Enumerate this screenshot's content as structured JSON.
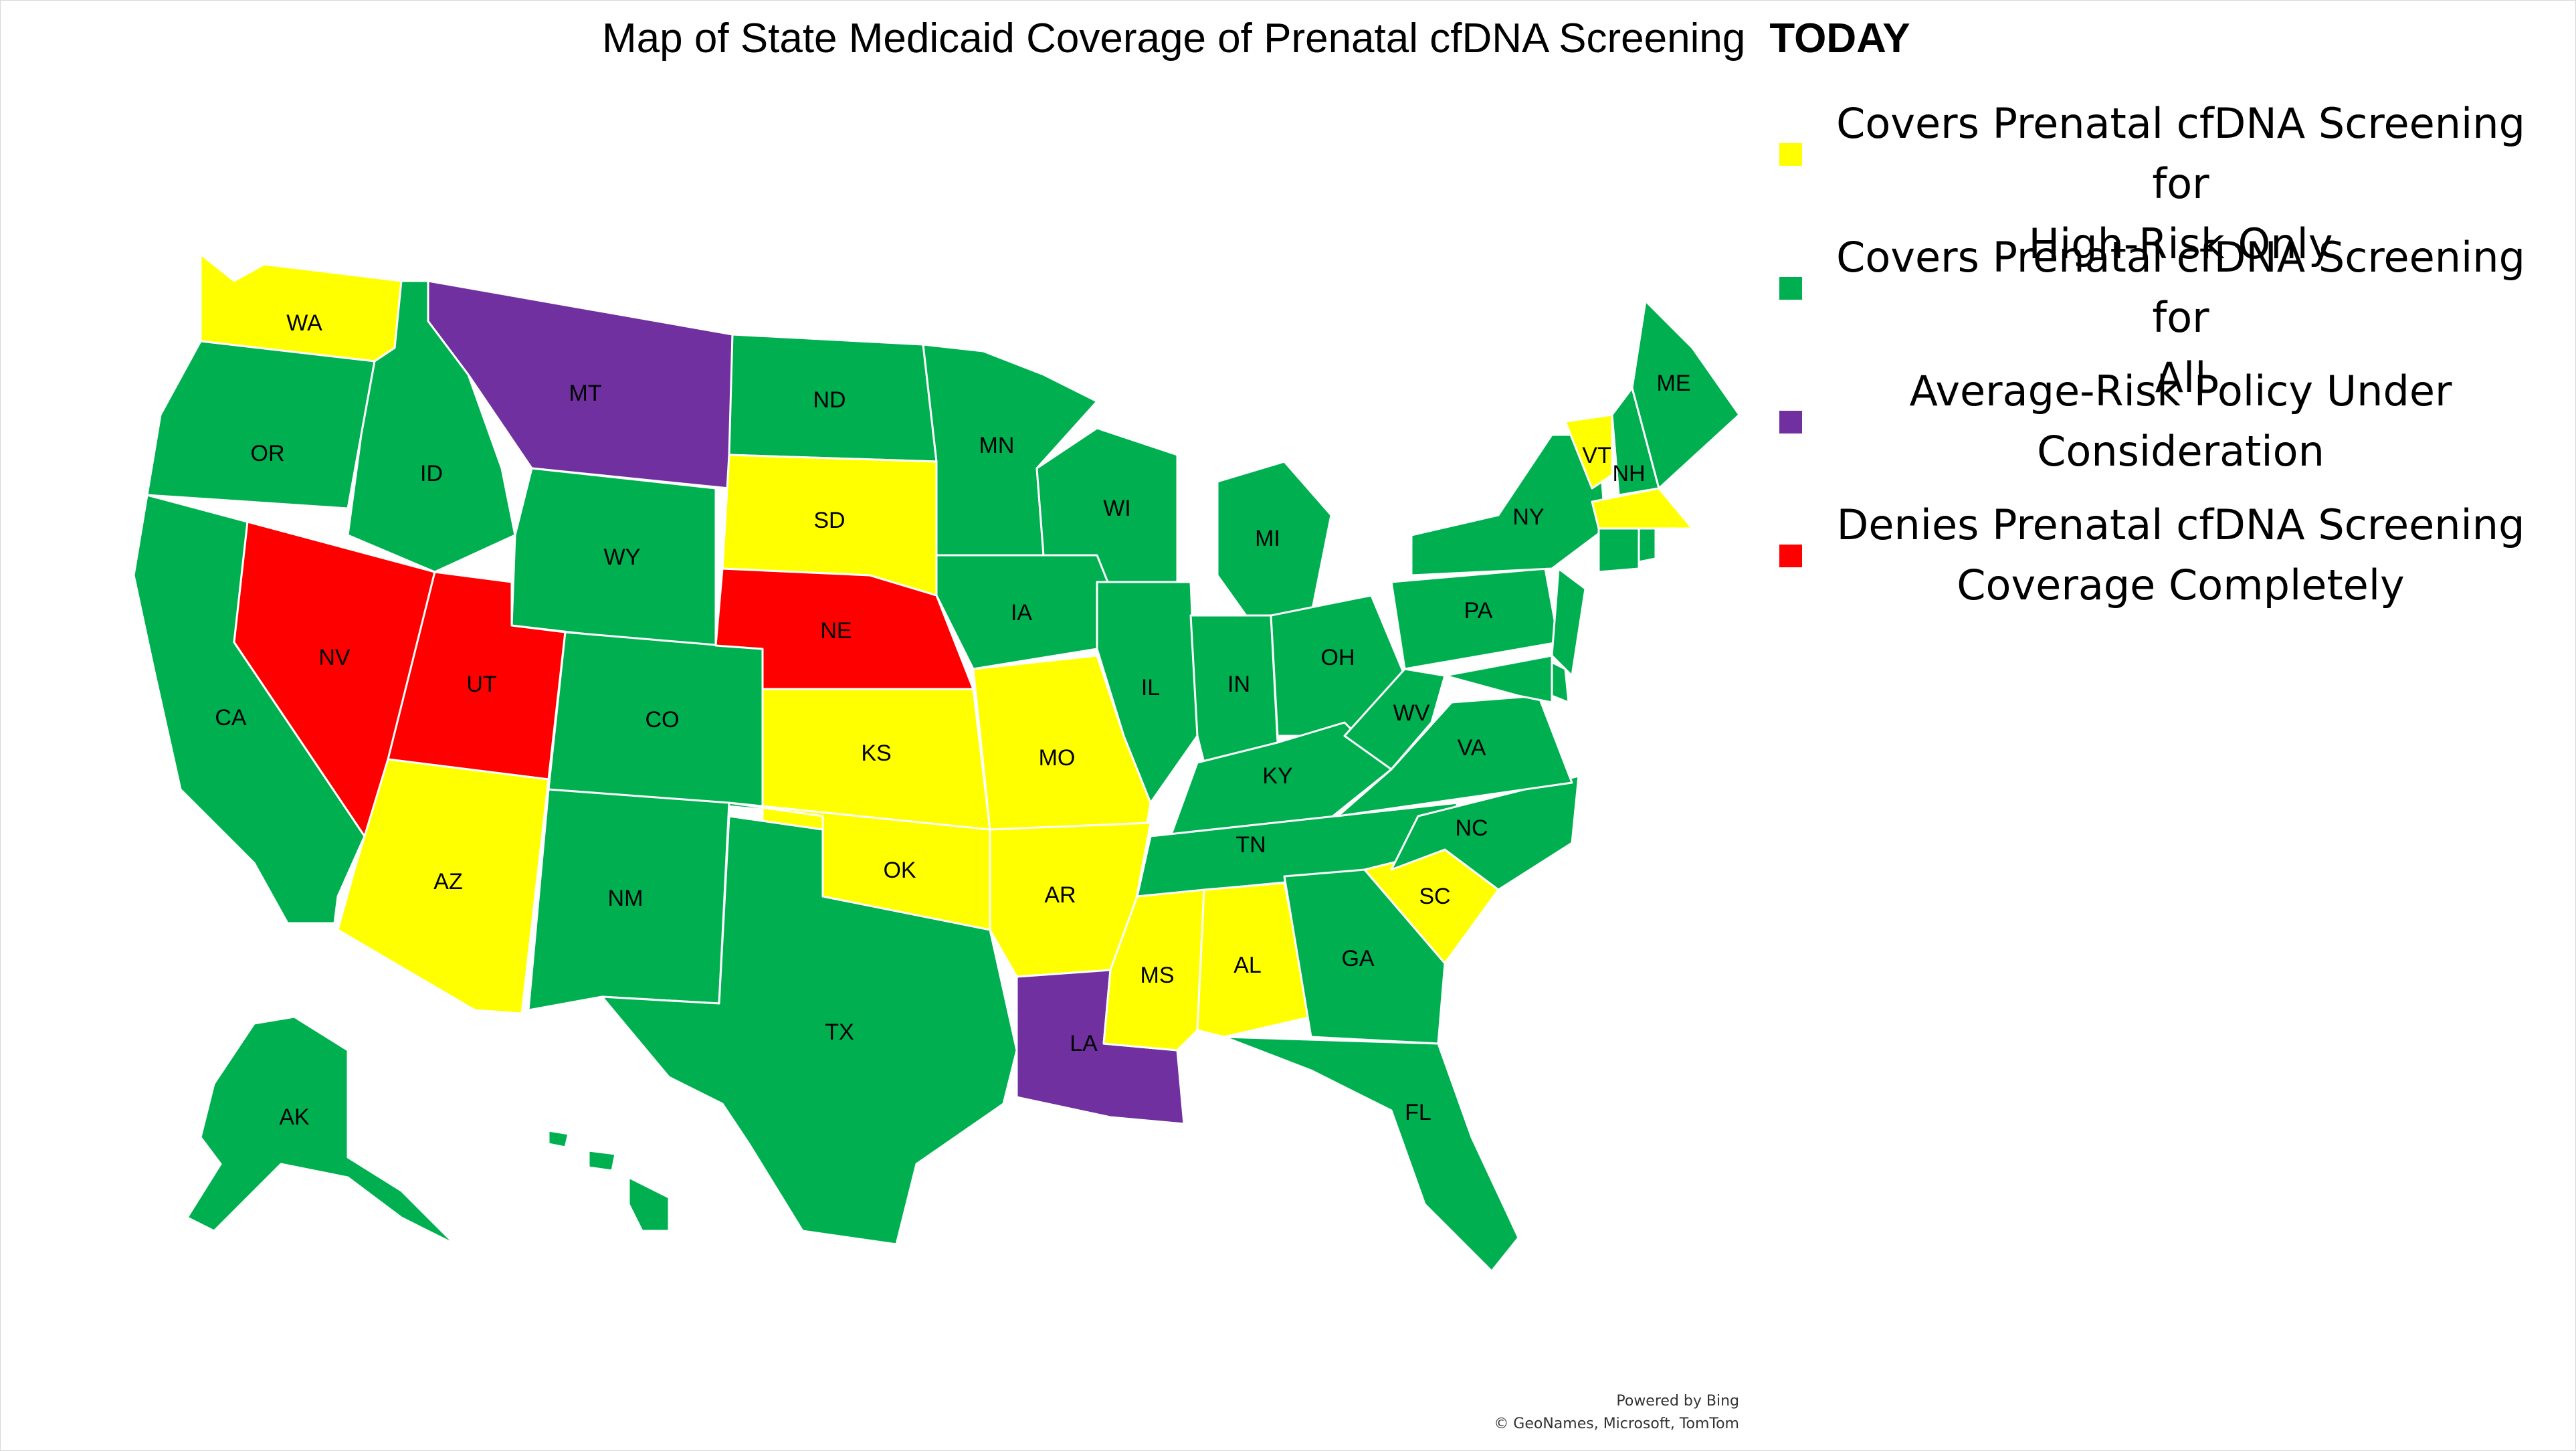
{
  "title": {
    "main": "Map of State Medicaid Coverage of Prenatal cfDNA Screening",
    "emphasis": "TODAY"
  },
  "colors": {
    "high_risk": "#FFFF00",
    "all": "#00B050",
    "under_consideration": "#7030A0",
    "denies": "#FF0000"
  },
  "legend": [
    {
      "key": "high_risk",
      "line1": "Covers Prenatal cfDNA Screening for",
      "line2": "High-Risk Only"
    },
    {
      "key": "all",
      "line1": "Covers Prenatal cfDNA Screening for",
      "line2": "All"
    },
    {
      "key": "under_consideration",
      "line1": "Average-Risk Policy Under",
      "line2": "Consideration"
    },
    {
      "key": "denies",
      "line1": "Denies Prenatal cfDNA Screening",
      "line2": "Coverage Completely"
    }
  ],
  "states": {
    "WA": "high_risk",
    "OR": "all",
    "CA": "all",
    "NV": "denies",
    "ID": "all",
    "MT": "under_consideration",
    "WY": "all",
    "UT": "denies",
    "AZ": "high_risk",
    "CO": "all",
    "NM": "all",
    "ND": "all",
    "SD": "high_risk",
    "NE": "denies",
    "KS": "high_risk",
    "OK": "high_risk",
    "TX": "all",
    "MN": "all",
    "IA": "all",
    "MO": "high_risk",
    "AR": "high_risk",
    "LA": "under_consideration",
    "WI": "all",
    "IL": "all",
    "MI": "all",
    "IN": "all",
    "OH": "all",
    "KY": "all",
    "TN": "all",
    "MS": "high_risk",
    "AL": "high_risk",
    "GA": "all",
    "FL": "all",
    "SC": "high_risk",
    "NC": "all",
    "VA": "all",
    "WV": "all",
    "PA": "all",
    "NY": "all",
    "VT": "high_risk",
    "NH": "all",
    "ME": "all",
    "MA": "high_risk",
    "CT": "all",
    "RI": "all",
    "NJ": "all",
    "DE": "all",
    "MD": "all",
    "AK": "all",
    "HI": "all"
  },
  "attribution": {
    "line1": "Powered by Bing",
    "line2": "© GeoNames, Microsoft, TomTom"
  }
}
